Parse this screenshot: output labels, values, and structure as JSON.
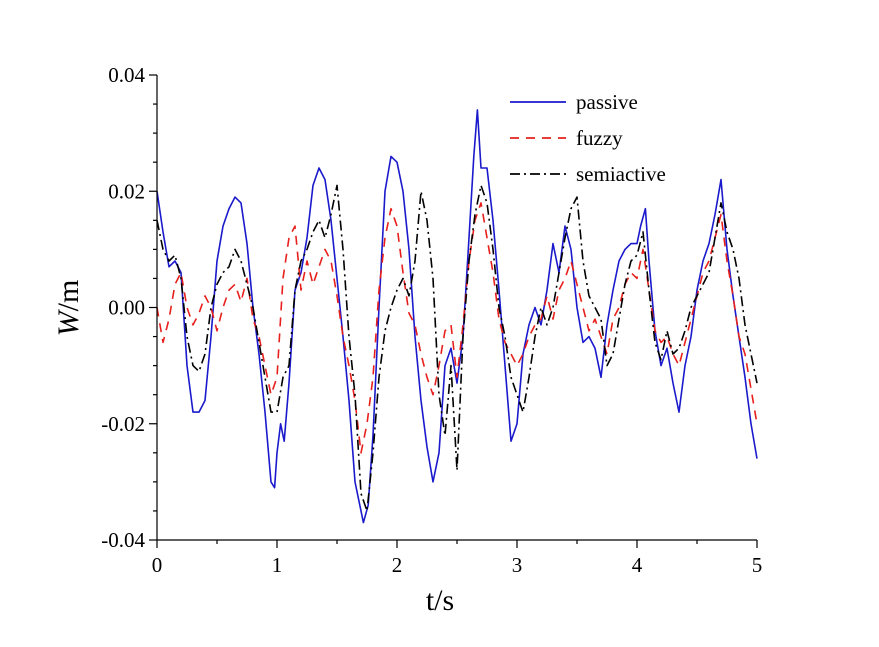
{
  "chart_data": {
    "type": "line",
    "xlabel": "t/s",
    "ylabel": {
      "italic": "W",
      "rest": "/m"
    },
    "xlim": [
      0,
      5
    ],
    "ylim": [
      -0.04,
      0.04
    ],
    "xticks": [
      0,
      1,
      2,
      3,
      4,
      5
    ],
    "xtick_labels": [
      "0",
      "1",
      "2",
      "3",
      "4",
      "5"
    ],
    "yticks": [
      -0.04,
      -0.02,
      0.0,
      0.02,
      0.04
    ],
    "ytick_labels": [
      "-0.04",
      "-0.02",
      "0.00",
      "0.02",
      "0.04"
    ],
    "grid": false,
    "legend_position": "top-right",
    "series": [
      {
        "name": "passive",
        "color": "#1a1acc",
        "dash": "solid",
        "points": [
          [
            0,
            0.02
          ],
          [
            0.05,
            0.013
          ],
          [
            0.1,
            0.007
          ],
          [
            0.15,
            0.008
          ],
          [
            0.2,
            0.006
          ],
          [
            0.25,
            -0.01
          ],
          [
            0.3,
            -0.018
          ],
          [
            0.35,
            -0.018
          ],
          [
            0.4,
            -0.016
          ],
          [
            0.45,
            -0.005
          ],
          [
            0.5,
            0.008
          ],
          [
            0.55,
            0.014
          ],
          [
            0.6,
            0.017
          ],
          [
            0.65,
            0.019
          ],
          [
            0.7,
            0.018
          ],
          [
            0.75,
            0.011
          ],
          [
            0.8,
            0.0
          ],
          [
            0.85,
            -0.008
          ],
          [
            0.9,
            -0.018
          ],
          [
            0.95,
            -0.03
          ],
          [
            0.98,
            -0.031
          ],
          [
            1.0,
            -0.025
          ],
          [
            1.03,
            -0.02
          ],
          [
            1.06,
            -0.023
          ],
          [
            1.1,
            -0.013
          ],
          [
            1.15,
            0.003
          ],
          [
            1.2,
            0.006
          ],
          [
            1.25,
            0.012
          ],
          [
            1.3,
            0.021
          ],
          [
            1.35,
            0.024
          ],
          [
            1.4,
            0.022
          ],
          [
            1.45,
            0.015
          ],
          [
            1.5,
            0.005
          ],
          [
            1.55,
            -0.005
          ],
          [
            1.6,
            -0.016
          ],
          [
            1.65,
            -0.03
          ],
          [
            1.72,
            -0.037
          ],
          [
            1.76,
            -0.034
          ],
          [
            1.8,
            -0.022
          ],
          [
            1.85,
            0.0
          ],
          [
            1.9,
            0.02
          ],
          [
            1.95,
            0.026
          ],
          [
            2.0,
            0.025
          ],
          [
            2.05,
            0.02
          ],
          [
            2.1,
            0.01
          ],
          [
            2.15,
            -0.005
          ],
          [
            2.2,
            -0.016
          ],
          [
            2.25,
            -0.024
          ],
          [
            2.3,
            -0.03
          ],
          [
            2.35,
            -0.025
          ],
          [
            2.4,
            -0.01
          ],
          [
            2.45,
            -0.007
          ],
          [
            2.5,
            -0.013
          ],
          [
            2.55,
            -0.005
          ],
          [
            2.6,
            0.012
          ],
          [
            2.64,
            0.026
          ],
          [
            2.67,
            0.034
          ],
          [
            2.7,
            0.024
          ],
          [
            2.75,
            0.024
          ],
          [
            2.8,
            0.015
          ],
          [
            2.85,
            0.003
          ],
          [
            2.9,
            -0.01
          ],
          [
            2.95,
            -0.023
          ],
          [
            3.0,
            -0.02
          ],
          [
            3.05,
            -0.008
          ],
          [
            3.1,
            -0.003
          ],
          [
            3.15,
            0.0
          ],
          [
            3.2,
            -0.003
          ],
          [
            3.25,
            0.003
          ],
          [
            3.3,
            0.011
          ],
          [
            3.35,
            0.006
          ],
          [
            3.4,
            0.014
          ],
          [
            3.45,
            0.01
          ],
          [
            3.5,
            0.0
          ],
          [
            3.55,
            -0.006
          ],
          [
            3.6,
            -0.005
          ],
          [
            3.65,
            -0.007
          ],
          [
            3.7,
            -0.012
          ],
          [
            3.75,
            -0.003
          ],
          [
            3.8,
            0.003
          ],
          [
            3.85,
            0.008
          ],
          [
            3.9,
            0.01
          ],
          [
            3.95,
            0.011
          ],
          [
            4.0,
            0.011
          ],
          [
            4.03,
            0.014
          ],
          [
            4.07,
            0.017
          ],
          [
            4.1,
            0.008
          ],
          [
            4.15,
            -0.004
          ],
          [
            4.2,
            -0.01
          ],
          [
            4.25,
            -0.007
          ],
          [
            4.3,
            -0.013
          ],
          [
            4.35,
            -0.018
          ],
          [
            4.4,
            -0.01
          ],
          [
            4.45,
            -0.005
          ],
          [
            4.5,
            0.003
          ],
          [
            4.55,
            0.008
          ],
          [
            4.6,
            0.011
          ],
          [
            4.65,
            0.016
          ],
          [
            4.7,
            0.022
          ],
          [
            4.75,
            0.01
          ],
          [
            4.8,
            0.002
          ],
          [
            4.85,
            -0.005
          ],
          [
            4.9,
            -0.012
          ],
          [
            4.95,
            -0.02
          ],
          [
            5.0,
            -0.026
          ]
        ]
      },
      {
        "name": "fuzzy",
        "color": "#e8201c",
        "dash": "9,7",
        "points": [
          [
            0,
            0.0
          ],
          [
            0.05,
            -0.006
          ],
          [
            0.1,
            -0.002
          ],
          [
            0.15,
            0.004
          ],
          [
            0.2,
            0.006
          ],
          [
            0.25,
            0.0
          ],
          [
            0.3,
            -0.003
          ],
          [
            0.35,
            -0.001
          ],
          [
            0.4,
            0.002
          ],
          [
            0.45,
            0.0
          ],
          [
            0.5,
            -0.004
          ],
          [
            0.55,
            0.0
          ],
          [
            0.6,
            0.003
          ],
          [
            0.65,
            0.004
          ],
          [
            0.7,
            0.001
          ],
          [
            0.75,
            0.005
          ],
          [
            0.8,
            -0.002
          ],
          [
            0.85,
            -0.005
          ],
          [
            0.9,
            -0.01
          ],
          [
            0.95,
            -0.015
          ],
          [
            1.0,
            -0.012
          ],
          [
            1.05,
            0.005
          ],
          [
            1.1,
            0.012
          ],
          [
            1.15,
            0.014
          ],
          [
            1.2,
            0.003
          ],
          [
            1.25,
            0.008
          ],
          [
            1.3,
            0.004
          ],
          [
            1.35,
            0.007
          ],
          [
            1.4,
            0.01
          ],
          [
            1.45,
            0.008
          ],
          [
            1.5,
            0.002
          ],
          [
            1.55,
            -0.005
          ],
          [
            1.6,
            -0.01
          ],
          [
            1.65,
            -0.016
          ],
          [
            1.7,
            -0.025
          ],
          [
            1.75,
            -0.02
          ],
          [
            1.8,
            -0.012
          ],
          [
            1.85,
            0.003
          ],
          [
            1.9,
            0.012
          ],
          [
            1.95,
            0.017
          ],
          [
            2.0,
            0.014
          ],
          [
            2.05,
            0.006
          ],
          [
            2.1,
            -0.001
          ],
          [
            2.15,
            -0.003
          ],
          [
            2.2,
            -0.008
          ],
          [
            2.25,
            -0.012
          ],
          [
            2.3,
            -0.015
          ],
          [
            2.35,
            -0.01
          ],
          [
            2.4,
            -0.004
          ],
          [
            2.45,
            -0.003
          ],
          [
            2.5,
            -0.012
          ],
          [
            2.55,
            -0.003
          ],
          [
            2.6,
            0.008
          ],
          [
            2.65,
            0.015
          ],
          [
            2.7,
            0.018
          ],
          [
            2.75,
            0.012
          ],
          [
            2.8,
            0.006
          ],
          [
            2.85,
            -0.002
          ],
          [
            2.9,
            -0.006
          ],
          [
            2.95,
            -0.008
          ],
          [
            3.0,
            -0.01
          ],
          [
            3.05,
            -0.008
          ],
          [
            3.1,
            -0.005
          ],
          [
            3.15,
            -0.003
          ],
          [
            3.2,
            -0.002
          ],
          [
            3.25,
            0.002
          ],
          [
            3.3,
            -0.002
          ],
          [
            3.35,
            0.003
          ],
          [
            3.4,
            0.005
          ],
          [
            3.45,
            0.008
          ],
          [
            3.5,
            0.004
          ],
          [
            3.55,
            0.0
          ],
          [
            3.6,
            -0.004
          ],
          [
            3.65,
            -0.002
          ],
          [
            3.7,
            -0.005
          ],
          [
            3.75,
            -0.008
          ],
          [
            3.8,
            -0.002
          ],
          [
            3.85,
            0.0
          ],
          [
            3.9,
            0.004
          ],
          [
            3.95,
            0.006
          ],
          [
            4.0,
            0.005
          ],
          [
            4.05,
            0.01
          ],
          [
            4.1,
            0.003
          ],
          [
            4.15,
            -0.004
          ],
          [
            4.2,
            -0.006
          ],
          [
            4.25,
            -0.005
          ],
          [
            4.3,
            -0.008
          ],
          [
            4.35,
            -0.01
          ],
          [
            4.4,
            -0.006
          ],
          [
            4.45,
            -0.002
          ],
          [
            4.5,
            0.002
          ],
          [
            4.55,
            0.006
          ],
          [
            4.6,
            0.008
          ],
          [
            4.65,
            0.012
          ],
          [
            4.7,
            0.016
          ],
          [
            4.75,
            0.008
          ],
          [
            4.8,
            0.002
          ],
          [
            4.85,
            -0.005
          ],
          [
            4.9,
            -0.008
          ],
          [
            4.95,
            -0.014
          ],
          [
            5.0,
            -0.02
          ]
        ]
      },
      {
        "name": "semiactive",
        "color": "#000000",
        "dash": "10,4,2,4",
        "points": [
          [
            0,
            0.015
          ],
          [
            0.05,
            0.01
          ],
          [
            0.1,
            0.008
          ],
          [
            0.15,
            0.009
          ],
          [
            0.2,
            0.005
          ],
          [
            0.25,
            -0.005
          ],
          [
            0.3,
            -0.01
          ],
          [
            0.35,
            -0.011
          ],
          [
            0.4,
            -0.008
          ],
          [
            0.45,
            0.0
          ],
          [
            0.5,
            0.004
          ],
          [
            0.55,
            0.006
          ],
          [
            0.6,
            0.007
          ],
          [
            0.65,
            0.01
          ],
          [
            0.7,
            0.008
          ],
          [
            0.75,
            0.004
          ],
          [
            0.8,
            0.0
          ],
          [
            0.85,
            -0.006
          ],
          [
            0.9,
            -0.012
          ],
          [
            0.95,
            -0.018
          ],
          [
            1.0,
            -0.018
          ],
          [
            1.05,
            -0.012
          ],
          [
            1.1,
            -0.01
          ],
          [
            1.15,
            0.003
          ],
          [
            1.2,
            0.008
          ],
          [
            1.25,
            0.01
          ],
          [
            1.3,
            0.013
          ],
          [
            1.35,
            0.015
          ],
          [
            1.4,
            0.012
          ],
          [
            1.45,
            0.016
          ],
          [
            1.5,
            0.021
          ],
          [
            1.55,
            0.01
          ],
          [
            1.6,
            -0.005
          ],
          [
            1.65,
            -0.015
          ],
          [
            1.7,
            -0.032
          ],
          [
            1.75,
            -0.035
          ],
          [
            1.8,
            -0.025
          ],
          [
            1.85,
            -0.012
          ],
          [
            1.9,
            -0.004
          ],
          [
            1.95,
            0.0
          ],
          [
            2.0,
            0.003
          ],
          [
            2.05,
            0.005
          ],
          [
            2.1,
            0.002
          ],
          [
            2.15,
            0.008
          ],
          [
            2.2,
            0.02
          ],
          [
            2.25,
            0.015
          ],
          [
            2.3,
            0.005
          ],
          [
            2.35,
            -0.015
          ],
          [
            2.4,
            -0.022
          ],
          [
            2.45,
            -0.01
          ],
          [
            2.5,
            -0.028
          ],
          [
            2.55,
            -0.005
          ],
          [
            2.6,
            0.008
          ],
          [
            2.65,
            0.016
          ],
          [
            2.7,
            0.021
          ],
          [
            2.75,
            0.018
          ],
          [
            2.8,
            0.01
          ],
          [
            2.85,
            0.0
          ],
          [
            2.9,
            -0.005
          ],
          [
            2.95,
            -0.012
          ],
          [
            3.0,
            -0.015
          ],
          [
            3.05,
            -0.018
          ],
          [
            3.1,
            -0.012
          ],
          [
            3.15,
            -0.005
          ],
          [
            3.2,
            0.0
          ],
          [
            3.25,
            -0.003
          ],
          [
            3.3,
            0.0
          ],
          [
            3.35,
            0.006
          ],
          [
            3.4,
            0.012
          ],
          [
            3.45,
            0.017
          ],
          [
            3.5,
            0.019
          ],
          [
            3.55,
            0.008
          ],
          [
            3.6,
            0.002
          ],
          [
            3.65,
            0.0
          ],
          [
            3.7,
            -0.002
          ],
          [
            3.75,
            -0.01
          ],
          [
            3.8,
            -0.008
          ],
          [
            3.85,
            -0.002
          ],
          [
            3.9,
            0.004
          ],
          [
            3.95,
            0.008
          ],
          [
            4.0,
            0.009
          ],
          [
            4.05,
            0.013
          ],
          [
            4.1,
            0.003
          ],
          [
            4.15,
            -0.006
          ],
          [
            4.2,
            -0.009
          ],
          [
            4.25,
            -0.004
          ],
          [
            4.3,
            -0.008
          ],
          [
            4.35,
            -0.007
          ],
          [
            4.4,
            -0.004
          ],
          [
            4.45,
            0.0
          ],
          [
            4.5,
            0.002
          ],
          [
            4.55,
            0.004
          ],
          [
            4.6,
            0.006
          ],
          [
            4.65,
            0.012
          ],
          [
            4.7,
            0.018
          ],
          [
            4.75,
            0.013
          ],
          [
            4.8,
            0.01
          ],
          [
            4.85,
            0.005
          ],
          [
            4.9,
            -0.003
          ],
          [
            4.95,
            -0.008
          ],
          [
            5.0,
            -0.013
          ]
        ]
      }
    ]
  }
}
